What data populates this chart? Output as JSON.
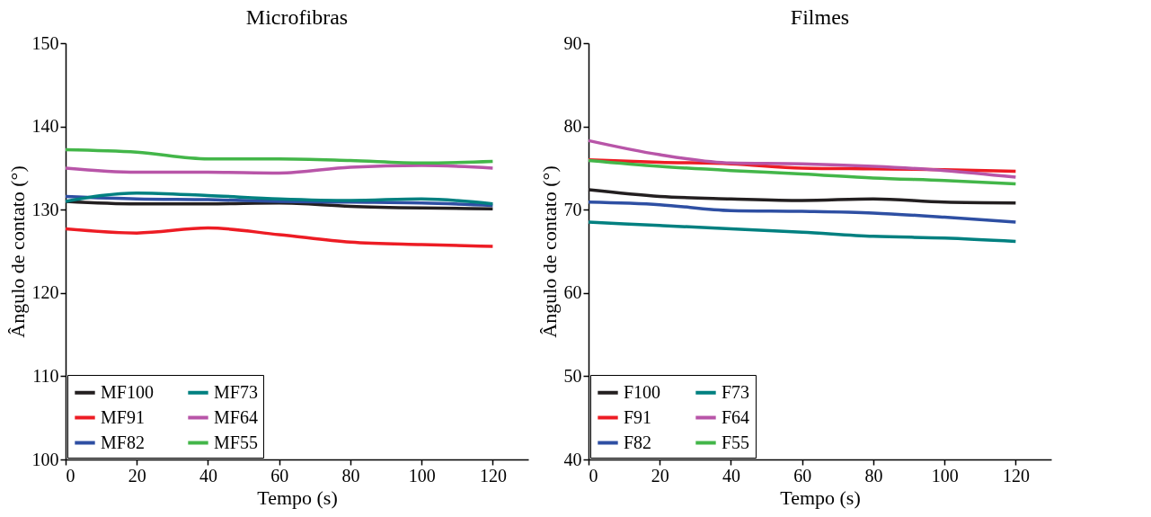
{
  "chart_data": [
    {
      "type": "line",
      "title": "Microfibras",
      "xlabel": "Tempo (s)",
      "ylabel": "Ângulo de contato (°)",
      "x": [
        0,
        20,
        40,
        60,
        80,
        100,
        120
      ],
      "xlim": [
        0,
        130
      ],
      "xticks": [
        0,
        20,
        40,
        60,
        80,
        100,
        120
      ],
      "ylim": [
        100,
        150
      ],
      "yticks": [
        100,
        110,
        120,
        130,
        140,
        150
      ],
      "grid": false,
      "legend": "bottom left",
      "marker": "none",
      "line_style": "solid",
      "series": [
        {
          "name": "MF100",
          "color": "#231f20",
          "values": [
            131.0,
            130.7,
            130.7,
            130.8,
            130.4,
            130.2,
            130.1
          ]
        },
        {
          "name": "MF91",
          "color": "#ed1c24",
          "values": [
            127.7,
            127.2,
            127.8,
            127.0,
            126.1,
            125.8,
            125.6
          ]
        },
        {
          "name": "MF82",
          "color": "#2e4fa3",
          "values": [
            131.6,
            131.3,
            131.2,
            131.0,
            130.9,
            130.8,
            130.5
          ]
        },
        {
          "name": "MF73",
          "color": "#008080",
          "values": [
            131.0,
            132.0,
            131.7,
            131.3,
            131.1,
            131.3,
            130.7
          ]
        },
        {
          "name": "MF64",
          "color": "#b855a8",
          "values": [
            135.0,
            134.5,
            134.5,
            134.4,
            135.1,
            135.3,
            135.0
          ]
        },
        {
          "name": "MF55",
          "color": "#43b649",
          "values": [
            137.2,
            136.9,
            136.1,
            136.1,
            135.9,
            135.6,
            135.8
          ]
        }
      ]
    },
    {
      "type": "line",
      "title": "Filmes",
      "xlabel": "Tempo (s)",
      "ylabel": "Ângulo de contato (°)",
      "x": [
        0,
        20,
        40,
        60,
        80,
        100,
        120
      ],
      "xlim": [
        0,
        130
      ],
      "xticks": [
        0,
        20,
        40,
        60,
        80,
        100,
        120
      ],
      "ylim": [
        40,
        90
      ],
      "yticks": [
        40,
        50,
        60,
        70,
        80,
        90
      ],
      "grid": false,
      "legend": "bottom left",
      "marker": "none",
      "line_style": "solid",
      "series": [
        {
          "name": "F100",
          "color": "#231f20",
          "values": [
            72.4,
            71.6,
            71.3,
            71.1,
            71.3,
            70.9,
            70.8
          ]
        },
        {
          "name": "F91",
          "color": "#ed1c24",
          "values": [
            76.0,
            75.7,
            75.5,
            75.0,
            74.9,
            74.8,
            74.6
          ]
        },
        {
          "name": "F82",
          "color": "#2e4fa3",
          "values": [
            70.9,
            70.6,
            69.9,
            69.8,
            69.6,
            69.1,
            68.5
          ]
        },
        {
          "name": "F73",
          "color": "#008080",
          "values": [
            68.5,
            68.1,
            67.7,
            67.3,
            66.8,
            66.6,
            66.2
          ]
        },
        {
          "name": "F64",
          "color": "#b855a8",
          "values": [
            78.3,
            76.6,
            75.6,
            75.5,
            75.2,
            74.7,
            73.9
          ]
        },
        {
          "name": "F55",
          "color": "#43b649",
          "values": [
            75.9,
            75.2,
            74.7,
            74.3,
            73.8,
            73.5,
            73.1
          ]
        }
      ]
    }
  ]
}
